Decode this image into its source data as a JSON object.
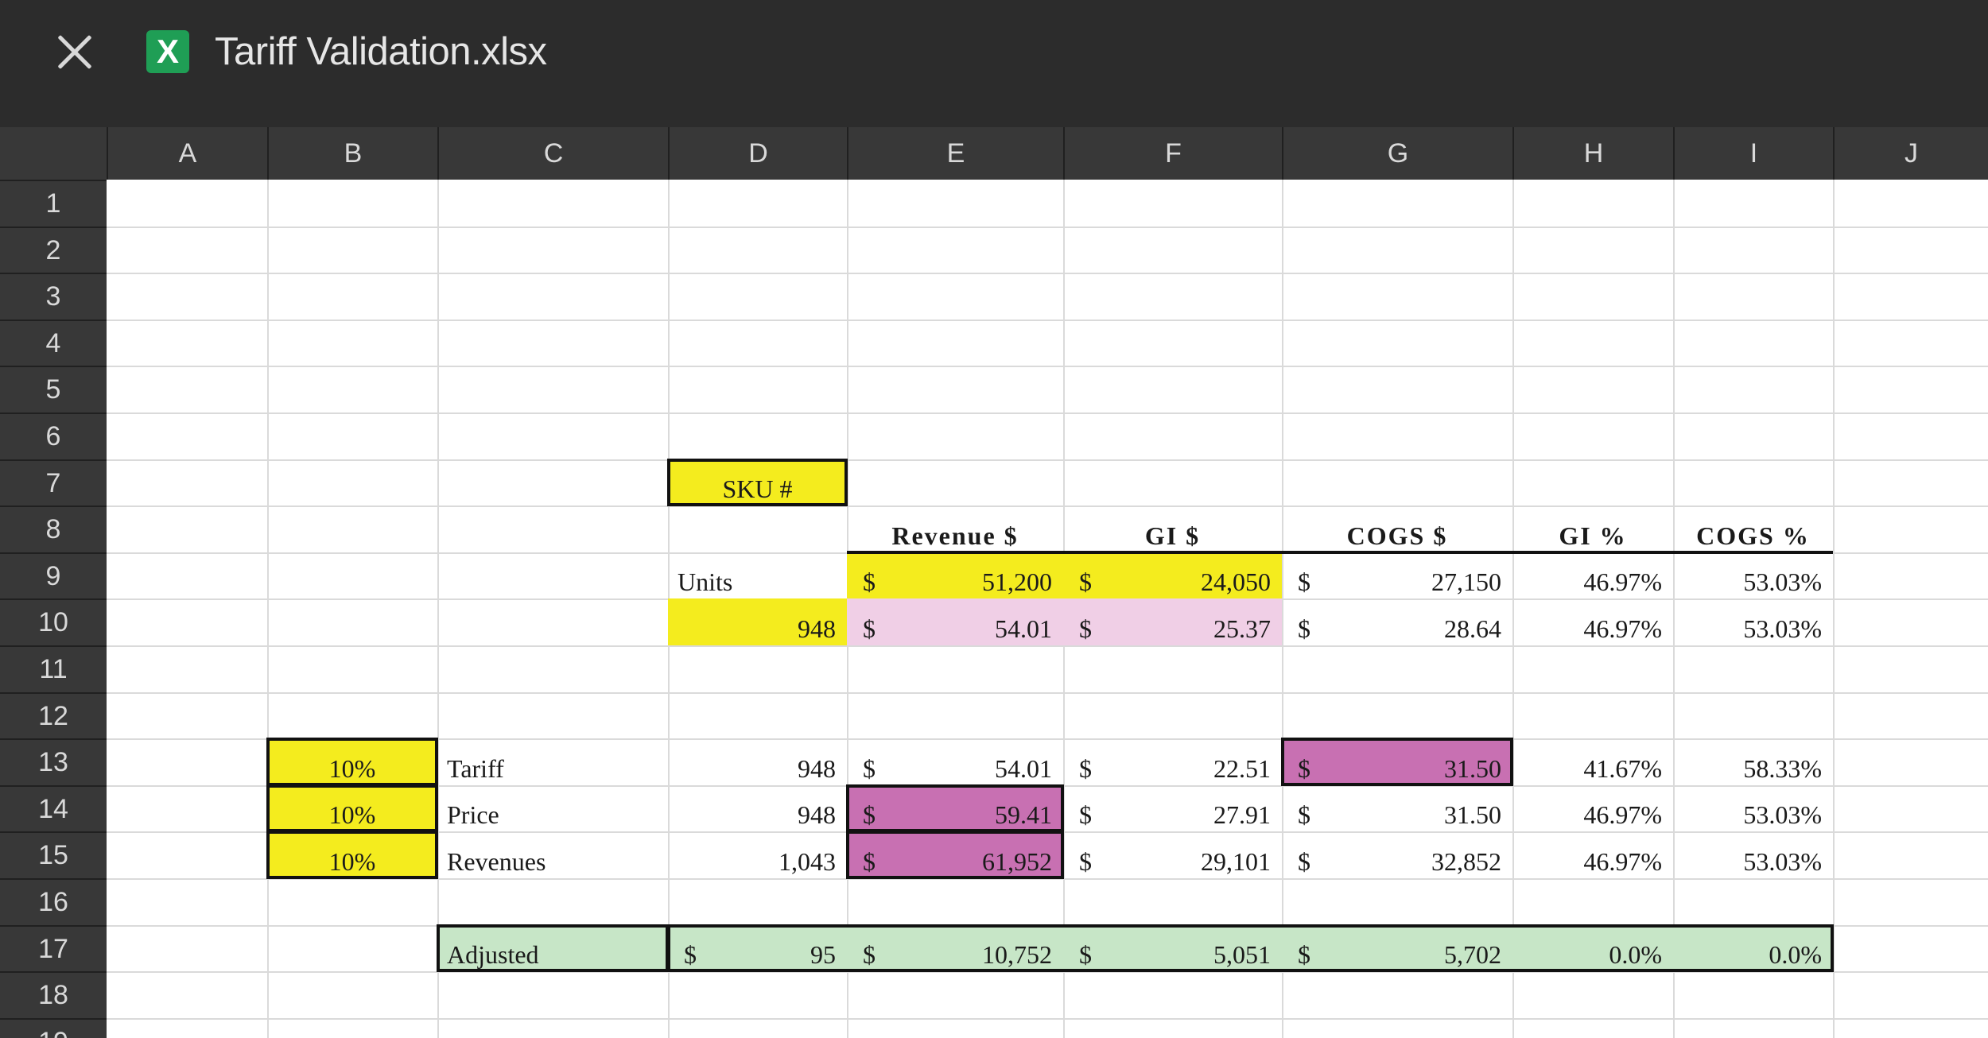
{
  "window": {
    "title": "Tariff Validation.xlsx",
    "app_icon": "excel-icon",
    "close_icon": "close-icon"
  },
  "columns": [
    "A",
    "B",
    "C",
    "D",
    "E",
    "F",
    "G",
    "H",
    "I",
    "J"
  ],
  "rows": [
    "1",
    "2",
    "3",
    "4",
    "5",
    "6",
    "7",
    "8",
    "9",
    "10",
    "11",
    "12",
    "13",
    "14",
    "15",
    "16",
    "17",
    "18",
    "19"
  ],
  "colors": {
    "yellow": "#f4ec1e",
    "light_pink": "#f0cfe6",
    "magenta": "#c870b2",
    "green": "#c7e6c7",
    "header_bg": "#383838"
  },
  "cells": {
    "D7": "SKU #",
    "E8": "Revenue $",
    "F8": "GI $",
    "G8": "COGS $",
    "H8": "GI  %",
    "I8": "COGS %",
    "D9": "Units",
    "E9": "51,200",
    "F9": "24,050",
    "G9": "27,150",
    "H9": "46.97%",
    "I9": "53.03%",
    "D10": "948",
    "E10": "54.01",
    "F10": "25.37",
    "G10": "28.64",
    "H10": "46.97%",
    "I10": "53.03%",
    "B13": "10%",
    "C13": "Tariff",
    "D13": "948",
    "E13": "54.01",
    "F13": "22.51",
    "G13": "31.50",
    "H13": "41.67%",
    "I13": "58.33%",
    "B14": "10%",
    "C14": "Price",
    "D14": "948",
    "E14": "59.41",
    "F14": "27.91",
    "G14": "31.50",
    "H14": "46.97%",
    "I14": "53.03%",
    "B15": "10%",
    "C15": "Revenues",
    "D15": "1,043",
    "E15": "61,952",
    "F15": "29,101",
    "G15": "32,852",
    "H15": "46.97%",
    "I15": "53.03%",
    "C17": "Adjusted",
    "D17": "95",
    "E17": "10,752",
    "F17": "5,051",
    "G17": "5,702",
    "H17": "0.0%",
    "I17": "0.0%"
  },
  "currency_symbol": "$"
}
